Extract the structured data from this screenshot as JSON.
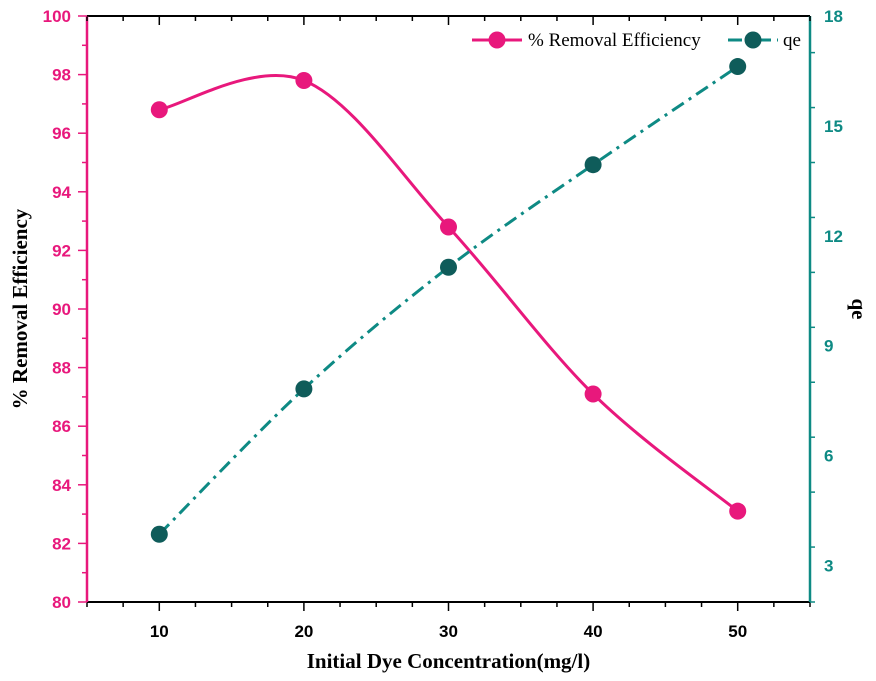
{
  "chart_data": {
    "type": "line",
    "x": [
      10,
      20,
      30,
      40,
      50
    ],
    "xlabel": "Initial Dye Concentration(mg/l)",
    "xlim": [
      5,
      55
    ],
    "xticks": [
      10,
      20,
      30,
      40,
      50
    ],
    "series": [
      {
        "name": "% Removal Efficiency",
        "axis": "left",
        "values": [
          96.8,
          97.8,
          92.8,
          87.1,
          83.1
        ],
        "color": "#e8187c",
        "line_style": "solid-smooth",
        "marker": "circle"
      },
      {
        "name": "qe",
        "axis": "right",
        "values": [
          3.85,
          7.82,
          11.14,
          13.94,
          16.62
        ],
        "color": "#0e8a84",
        "marker_color": "#0f5c5a",
        "line_style": "dash-dot",
        "marker": "circle"
      }
    ],
    "ylabel_left": "% Removal Efficiency",
    "ylim_left": [
      80,
      100
    ],
    "yticks_left": [
      80,
      82,
      84,
      86,
      88,
      90,
      92,
      94,
      96,
      98,
      100
    ],
    "left_axis_color": "#e8187c",
    "ylabel_right": "qe",
    "ylim_right": [
      2,
      18
    ],
    "yticks_right": [
      3,
      6,
      9,
      12,
      15,
      18
    ],
    "right_axis_color": "#0e8a84",
    "legend_placement": "top-right",
    "grid": false
  }
}
